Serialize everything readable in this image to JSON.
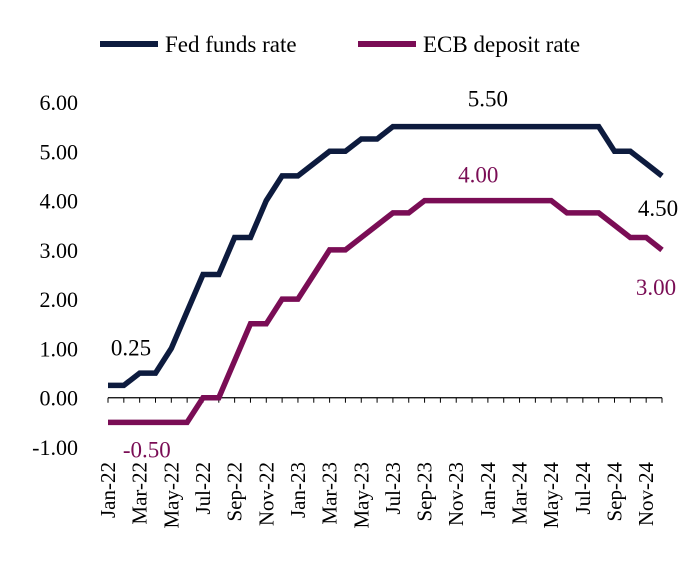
{
  "chart_data": {
    "type": "line",
    "title": "",
    "xlabel": "",
    "ylabel": "",
    "ylim": [
      -1,
      6
    ],
    "yticks": [
      "6.00",
      "5.00",
      "4.00",
      "3.00",
      "2.00",
      "1.00",
      "0.00",
      "-1.00"
    ],
    "xtick_labels": [
      "Jan-22",
      "Mar-22",
      "May-22",
      "Jul-22",
      "Sep-22",
      "Nov-22",
      "Jan-23",
      "Mar-23",
      "May-23",
      "Jul-23",
      "Sep-23",
      "Nov-23",
      "Jan-24",
      "Mar-24",
      "May-24",
      "Jul-24",
      "Sep-24",
      "Nov-24"
    ],
    "x": [
      "Jan-22",
      "Feb-22",
      "Mar-22",
      "Apr-22",
      "May-22",
      "Jun-22",
      "Jul-22",
      "Aug-22",
      "Sep-22",
      "Oct-22",
      "Nov-22",
      "Dec-22",
      "Jan-23",
      "Feb-23",
      "Mar-23",
      "Apr-23",
      "May-23",
      "Jun-23",
      "Jul-23",
      "Aug-23",
      "Sep-23",
      "Oct-23",
      "Nov-23",
      "Dec-23",
      "Jan-24",
      "Feb-24",
      "Mar-24",
      "Apr-24",
      "May-24",
      "Jun-24",
      "Jul-24",
      "Aug-24",
      "Sep-24",
      "Oct-24",
      "Nov-24",
      "Dec-24"
    ],
    "series": [
      {
        "name": "Fed funds rate",
        "color": "#0d1b3e",
        "values": [
          0.25,
          0.25,
          0.5,
          0.5,
          1.0,
          1.75,
          2.5,
          2.5,
          3.25,
          3.25,
          4.0,
          4.5,
          4.5,
          4.75,
          5.0,
          5.0,
          5.25,
          5.25,
          5.5,
          5.5,
          5.5,
          5.5,
          5.5,
          5.5,
          5.5,
          5.5,
          5.5,
          5.5,
          5.5,
          5.5,
          5.5,
          5.5,
          5.0,
          5.0,
          4.75,
          4.5
        ]
      },
      {
        "name": "ECB deposit rate",
        "color": "#7a0d55",
        "values": [
          -0.5,
          -0.5,
          -0.5,
          -0.5,
          -0.5,
          -0.5,
          0.0,
          0.0,
          0.75,
          1.5,
          1.5,
          2.0,
          2.0,
          2.5,
          3.0,
          3.0,
          3.25,
          3.5,
          3.75,
          3.75,
          4.0,
          4.0,
          4.0,
          4.0,
          4.0,
          4.0,
          4.0,
          4.0,
          4.0,
          3.75,
          3.75,
          3.75,
          3.5,
          3.25,
          3.25,
          3.0
        ]
      }
    ],
    "annotations": [
      {
        "text": "0.25",
        "series": 0
      },
      {
        "text": "5.50",
        "series": 0
      },
      {
        "text": "4.50",
        "series": 0
      },
      {
        "text": "-0.50",
        "series": 1
      },
      {
        "text": "4.00",
        "series": 1
      },
      {
        "text": "3.00",
        "series": 1
      }
    ],
    "legend": "top",
    "grid": false
  }
}
